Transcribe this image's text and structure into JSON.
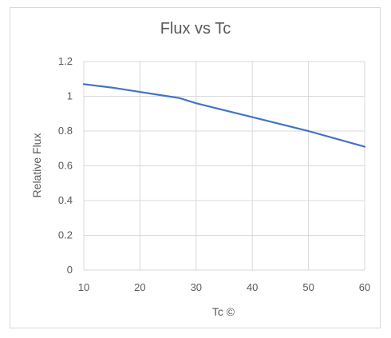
{
  "chart_data": {
    "type": "line",
    "title": "Flux vs Tc",
    "xlabel": "Tc ©",
    "ylabel": "Relative Flux",
    "xlim": [
      10,
      60
    ],
    "ylim": [
      0,
      1.2
    ],
    "xticks": [
      10,
      20,
      30,
      40,
      50,
      60
    ],
    "yticks": [
      0,
      0.2,
      0.4,
      0.6,
      0.8,
      1,
      1.2
    ],
    "grid": true,
    "legend": "none",
    "line_color": "#4472c4",
    "series": [
      {
        "x": [
          10,
          15,
          20,
          25,
          27,
          30,
          35,
          40,
          45,
          50,
          55,
          60
        ],
        "y": [
          1.07,
          1.05,
          1.025,
          1.0,
          0.99,
          0.96,
          0.92,
          0.88,
          0.84,
          0.8,
          0.755,
          0.71
        ]
      }
    ]
  }
}
